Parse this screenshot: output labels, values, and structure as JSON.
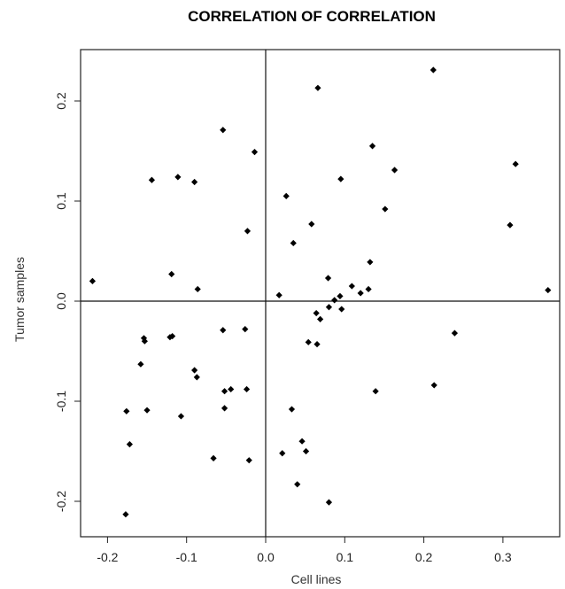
{
  "chart_data": {
    "type": "scatter",
    "title": "CORRELATION OF CORRELATION",
    "xlabel": "Cell lines",
    "ylabel": "Tumor samples",
    "xlim": [
      -0.24,
      0.37
    ],
    "ylim": [
      -0.235,
      0.25
    ],
    "xticks": [
      -0.2,
      -0.1,
      0.0,
      0.1,
      0.2,
      0.3
    ],
    "yticks": [
      -0.2,
      -0.1,
      0.0,
      0.1,
      0.2
    ],
    "xtick_labels": [
      "-0.2",
      "-0.1",
      "0.0",
      "0.1",
      "0.2",
      "0.3"
    ],
    "ytick_labels": [
      "-0.2",
      "-0.1",
      "0.0",
      "0.1",
      "0.2"
    ],
    "reference_lines": {
      "x": 0,
      "y": 0
    },
    "grid": false,
    "marker": "diamond",
    "points": [
      {
        "x": 0.212,
        "y": 0.231
      },
      {
        "x": 0.066,
        "y": 0.213
      },
      {
        "x": -0.054,
        "y": 0.171
      },
      {
        "x": -0.014,
        "y": 0.149
      },
      {
        "x": 0.135,
        "y": 0.155
      },
      {
        "x": 0.316,
        "y": 0.137
      },
      {
        "x": 0.163,
        "y": 0.131
      },
      {
        "x": -0.111,
        "y": 0.124
      },
      {
        "x": -0.144,
        "y": 0.121
      },
      {
        "x": 0.095,
        "y": 0.122
      },
      {
        "x": -0.09,
        "y": 0.119
      },
      {
        "x": 0.026,
        "y": 0.105
      },
      {
        "x": 0.151,
        "y": 0.092
      },
      {
        "x": 0.058,
        "y": 0.077
      },
      {
        "x": 0.309,
        "y": 0.076
      },
      {
        "x": -0.023,
        "y": 0.07
      },
      {
        "x": 0.035,
        "y": 0.058
      },
      {
        "x": 0.132,
        "y": 0.039
      },
      {
        "x": -0.119,
        "y": 0.027
      },
      {
        "x": 0.079,
        "y": 0.023
      },
      {
        "x": -0.219,
        "y": 0.02
      },
      {
        "x": 0.109,
        "y": 0.015
      },
      {
        "x": -0.086,
        "y": 0.012
      },
      {
        "x": 0.13,
        "y": 0.012
      },
      {
        "x": 0.357,
        "y": 0.011
      },
      {
        "x": 0.12,
        "y": 0.008
      },
      {
        "x": 0.017,
        "y": 0.006
      },
      {
        "x": 0.094,
        "y": 0.005
      },
      {
        "x": 0.087,
        "y": 0.001
      },
      {
        "x": 0.08,
        "y": -0.006
      },
      {
        "x": 0.096,
        "y": -0.008
      },
      {
        "x": 0.064,
        "y": -0.012
      },
      {
        "x": 0.069,
        "y": -0.018
      },
      {
        "x": -0.054,
        "y": -0.029
      },
      {
        "x": -0.026,
        "y": -0.028
      },
      {
        "x": 0.239,
        "y": -0.032
      },
      {
        "x": -0.118,
        "y": -0.035
      },
      {
        "x": -0.121,
        "y": -0.036
      },
      {
        "x": -0.154,
        "y": -0.037
      },
      {
        "x": -0.153,
        "y": -0.04
      },
      {
        "x": 0.054,
        "y": -0.041
      },
      {
        "x": 0.065,
        "y": -0.043
      },
      {
        "x": -0.158,
        "y": -0.063
      },
      {
        "x": -0.09,
        "y": -0.069
      },
      {
        "x": -0.087,
        "y": -0.076
      },
      {
        "x": 0.213,
        "y": -0.084
      },
      {
        "x": -0.044,
        "y": -0.088
      },
      {
        "x": -0.024,
        "y": -0.088
      },
      {
        "x": -0.052,
        "y": -0.09
      },
      {
        "x": 0.139,
        "y": -0.09
      },
      {
        "x": -0.052,
        "y": -0.107
      },
      {
        "x": 0.033,
        "y": -0.108
      },
      {
        "x": -0.176,
        "y": -0.11
      },
      {
        "x": -0.15,
        "y": -0.109
      },
      {
        "x": -0.107,
        "y": -0.115
      },
      {
        "x": 0.046,
        "y": -0.14
      },
      {
        "x": -0.172,
        "y": -0.143
      },
      {
        "x": 0.051,
        "y": -0.15
      },
      {
        "x": 0.021,
        "y": -0.152
      },
      {
        "x": -0.066,
        "y": -0.157
      },
      {
        "x": -0.021,
        "y": -0.159
      },
      {
        "x": 0.04,
        "y": -0.183
      },
      {
        "x": 0.08,
        "y": -0.201
      },
      {
        "x": -0.177,
        "y": -0.213
      }
    ]
  }
}
